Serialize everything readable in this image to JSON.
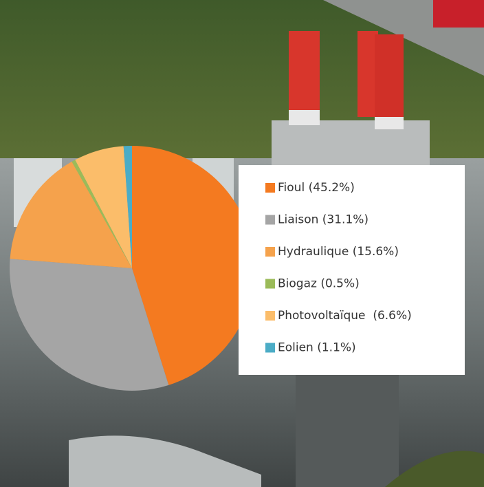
{
  "chart_data": {
    "type": "pie",
    "categories": [
      "Fioul (45.2%)",
      "Liaison (31.1%)",
      "Hydraulique (15.6%)",
      "Biogaz (0.5%)",
      "Photovoltaïque  (6.6%)",
      "Eolien (1.1%)"
    ],
    "values": [
      45.2,
      31.1,
      15.6,
      0.5,
      6.6,
      1.1
    ],
    "colors": [
      "#f47a20",
      "#a5a5a5",
      "#f5a24c",
      "#9bbb59",
      "#fbbd6a",
      "#4bacc6"
    ]
  }
}
